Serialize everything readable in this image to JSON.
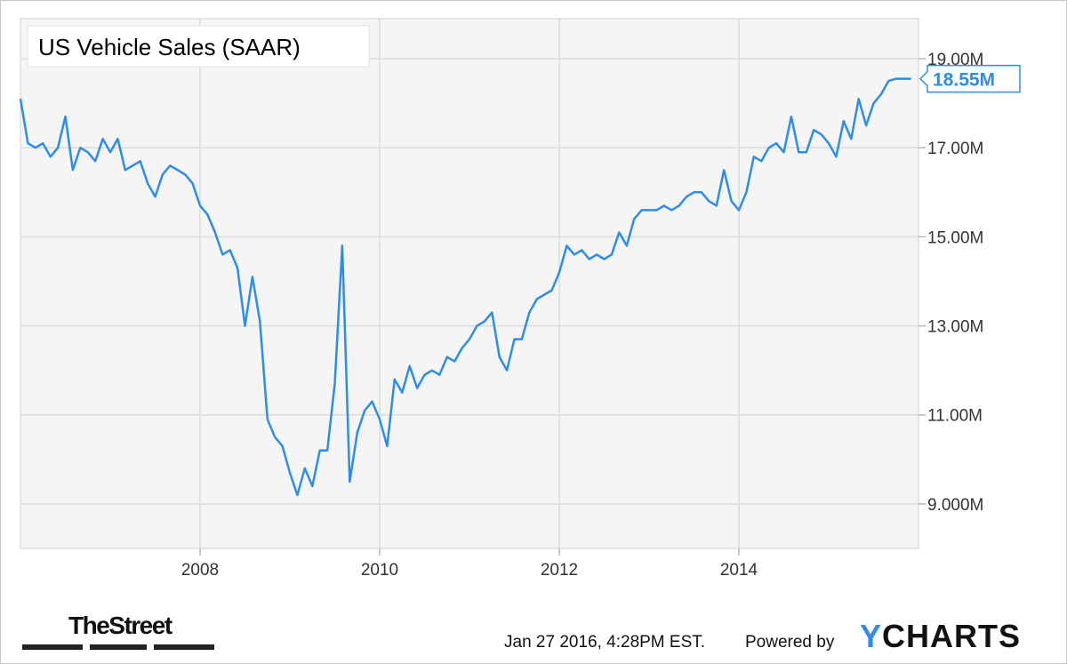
{
  "chart_data": {
    "type": "line",
    "title": "US Vehicle Sales (SAAR)",
    "xlabel": "",
    "ylabel": "",
    "x_start": "2006-01",
    "x_end": "2015-12",
    "xlim": [
      "2006-01",
      "2016-01"
    ],
    "ylim": [
      8.0,
      19.9
    ],
    "x_ticks": [
      {
        "x": "2008-01",
        "label": "2008"
      },
      {
        "x": "2010-01",
        "label": "2010"
      },
      {
        "x": "2012-01",
        "label": "2012"
      },
      {
        "x": "2014-01",
        "label": "2014"
      }
    ],
    "y_ticks": [
      {
        "value": 9.0,
        "label": "9.000M"
      },
      {
        "value": 11.0,
        "label": "11.00M"
      },
      {
        "value": 13.0,
        "label": "13.00M"
      },
      {
        "value": 15.0,
        "label": "15.00M"
      },
      {
        "value": 17.0,
        "label": "17.00M"
      },
      {
        "value": 19.0,
        "label": "19.00M"
      }
    ],
    "grid": true,
    "last_value_label": "18.55M",
    "line_color": "#2e8de8",
    "series": [
      {
        "values": [
          18.1,
          17.1,
          17.0,
          17.1,
          16.8,
          17.0,
          17.7,
          16.5,
          17.0,
          16.9,
          16.7,
          17.2,
          16.9,
          17.2,
          16.5,
          16.6,
          16.7,
          16.2,
          15.9,
          16.4,
          16.6,
          16.5,
          16.4,
          16.2,
          15.7,
          15.5,
          15.1,
          14.6,
          14.7,
          14.3,
          13.0,
          14.1,
          13.1,
          10.9,
          10.5,
          10.3,
          9.7,
          9.2,
          9.8,
          9.4,
          10.2,
          10.2,
          11.7,
          14.8,
          9.5,
          10.6,
          11.1,
          11.3,
          10.9,
          10.3,
          11.8,
          11.5,
          12.1,
          11.6,
          11.9,
          12.0,
          11.9,
          12.3,
          12.2,
          12.5,
          12.7,
          13.0,
          13.1,
          13.3,
          12.3,
          12.0,
          12.7,
          12.7,
          13.3,
          13.6,
          13.7,
          13.8,
          14.2,
          14.8,
          14.6,
          14.7,
          14.5,
          14.6,
          14.5,
          14.6,
          15.1,
          14.8,
          15.4,
          15.6,
          15.6,
          15.6,
          15.7,
          15.6,
          15.7,
          15.9,
          16.0,
          16.0,
          15.8,
          15.7,
          16.5,
          15.8,
          15.6,
          16.0,
          16.8,
          16.7,
          17.0,
          17.1,
          16.9,
          17.7,
          16.9,
          16.9,
          17.4,
          17.3,
          17.1,
          16.8,
          17.6,
          17.2,
          18.1,
          17.5,
          18.0,
          18.2,
          18.5,
          18.55,
          18.55,
          18.55
        ]
      }
    ]
  },
  "footer": {
    "timestamp": "Jan 27 2016, 4:28PM EST.",
    "powered_by": "Powered by",
    "brand_y": "Y",
    "brand_rest": "CHARTS",
    "source_logo": "TheStreet"
  },
  "colors": {
    "plot_bg": "#f5f5f5",
    "grid": "#dcdcdc",
    "line": "#2e8de8",
    "brand_accent": "#2e8de8"
  }
}
